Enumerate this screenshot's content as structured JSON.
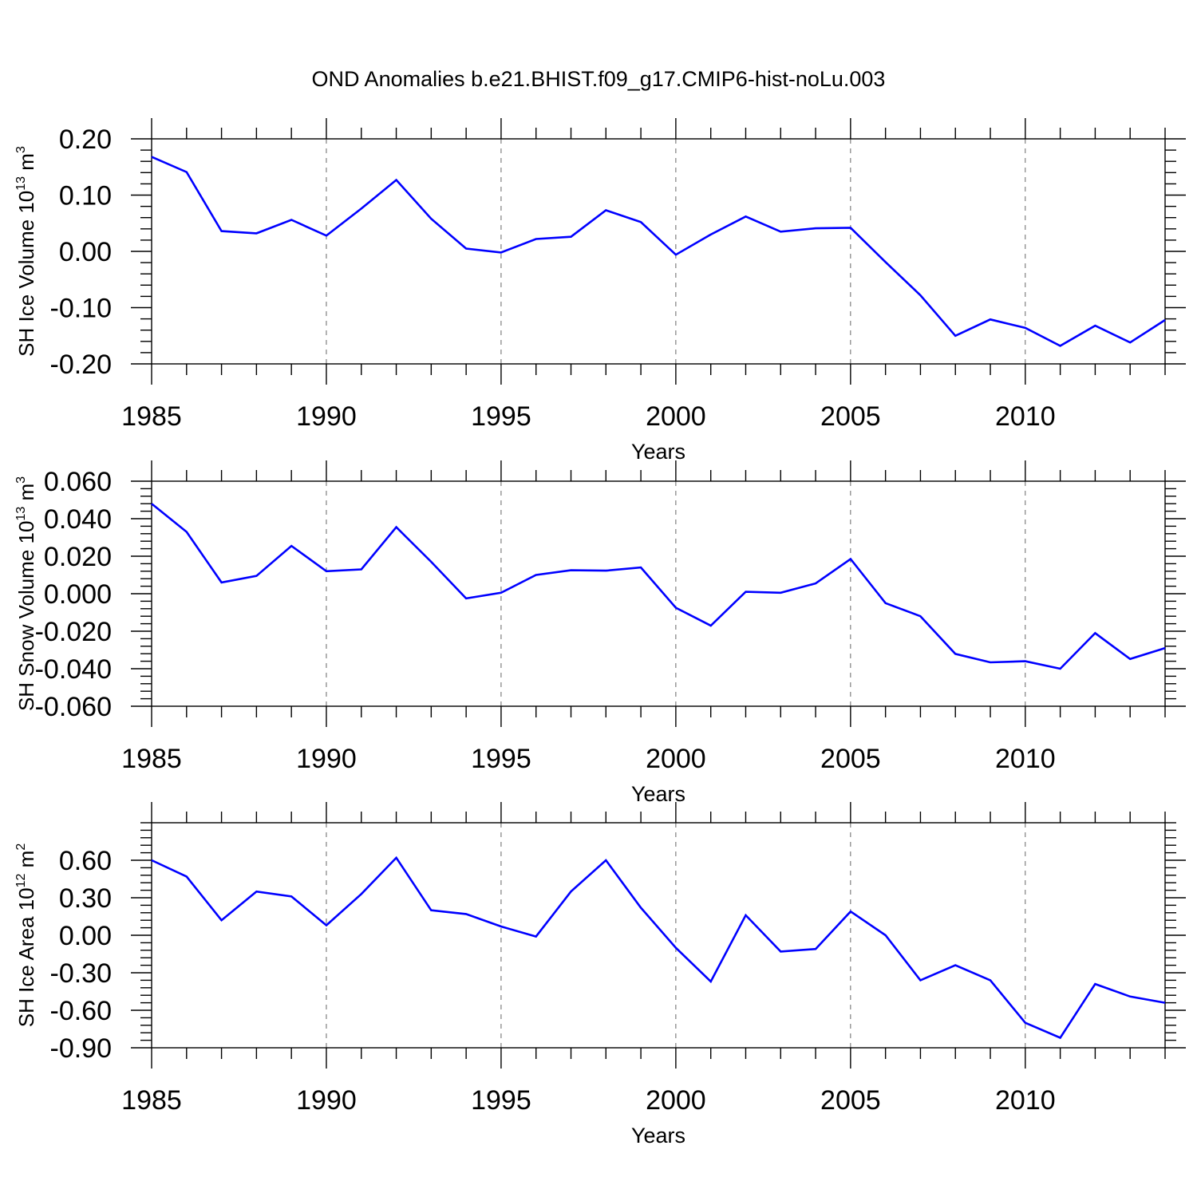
{
  "title": "OND Anomalies b.e21.BHIST.f09_g17.CMIP6-hist-noLu.003",
  "chart_data": [
    {
      "type": "line",
      "title": "",
      "xlabel": "Years",
      "ylabel": "SH Ice Volume 10",
      "ylabel_sup": "13",
      "ylabel_unit": " m",
      "ylabel_unit_sup": "3",
      "xlim": [
        1985,
        2014
      ],
      "ylim": [
        -0.2,
        0.2
      ],
      "x_ticks": [
        1985,
        1990,
        1995,
        2000,
        2005,
        2010
      ],
      "y_ticks": [
        0.2,
        0.1,
        0.0,
        -0.1,
        -0.2
      ],
      "y_tick_labels": [
        "0.20",
        "0.10",
        "0.00",
        "-0.10",
        "-0.20"
      ],
      "grid": "vertical dashed at major x ticks",
      "line_color": "#0000ff",
      "series": [
        {
          "x": [
            1985,
            1986,
            1987,
            1988,
            1989,
            1990,
            1991,
            1992,
            1993,
            1994,
            1995,
            1996,
            1997,
            1998,
            1999,
            2000,
            2001,
            2002,
            2003,
            2004,
            2005,
            2006,
            2007,
            2008,
            2009,
            2010,
            2011,
            2012,
            2013,
            2014
          ],
          "values": [
            0.168,
            0.141,
            0.036,
            0.032,
            0.056,
            0.028,
            0.076,
            0.127,
            0.058,
            0.005,
            -0.002,
            0.022,
            0.026,
            0.073,
            0.052,
            -0.006,
            0.03,
            0.062,
            0.035,
            0.041,
            0.042,
            -0.019,
            -0.078,
            -0.15,
            -0.121,
            -0.136,
            -0.168,
            -0.132,
            -0.162,
            -0.122
          ]
        }
      ]
    },
    {
      "type": "line",
      "title": "",
      "xlabel": "Years",
      "ylabel": "SH Snow Volume 10",
      "ylabel_sup": "13",
      "ylabel_unit": " m",
      "ylabel_unit_sup": "3",
      "xlim": [
        1985,
        2014
      ],
      "ylim": [
        -0.06,
        0.06
      ],
      "x_ticks": [
        1985,
        1990,
        1995,
        2000,
        2005,
        2010
      ],
      "y_ticks": [
        0.06,
        0.04,
        0.02,
        0.0,
        -0.02,
        -0.04,
        -0.06
      ],
      "y_tick_labels": [
        "0.060",
        "0.040",
        "0.020",
        "0.000",
        "-0.020",
        "-0.040",
        "-0.060"
      ],
      "grid": "vertical dashed at major x ticks",
      "line_color": "#0000ff",
      "series": [
        {
          "x": [
            1985,
            1986,
            1987,
            1988,
            1989,
            1990,
            1991,
            1992,
            1993,
            1994,
            1995,
            1996,
            1997,
            1998,
            1999,
            2000,
            2001,
            2002,
            2003,
            2004,
            2005,
            2006,
            2007,
            2008,
            2009,
            2010,
            2011,
            2012,
            2013,
            2014
          ],
          "values": [
            0.048,
            0.033,
            0.006,
            0.0095,
            0.0255,
            0.012,
            0.013,
            0.0355,
            0.017,
            -0.0025,
            0.0005,
            0.01,
            0.0125,
            0.0123,
            0.014,
            -0.0075,
            -0.017,
            0.001,
            0.0005,
            0.0055,
            0.0185,
            -0.005,
            -0.012,
            -0.0321,
            -0.0366,
            -0.036,
            -0.04,
            -0.021,
            -0.0348,
            -0.029
          ]
        }
      ]
    },
    {
      "type": "line",
      "title": "",
      "xlabel": "Years",
      "ylabel": "SH Ice Area 10",
      "ylabel_sup": "12",
      "ylabel_unit": " m",
      "ylabel_unit_sup": "2",
      "xlim": [
        1985,
        2014
      ],
      "ylim": [
        -0.9,
        0.9
      ],
      "x_ticks": [
        1985,
        1990,
        1995,
        2000,
        2005,
        2010
      ],
      "y_ticks": [
        0.6,
        0.3,
        0.0,
        -0.3,
        -0.6,
        -0.9
      ],
      "y_tick_labels": [
        "0.60",
        "0.30",
        "0.00",
        "-0.30",
        "-0.60",
        "-0.90"
      ],
      "grid": "vertical dashed at major x ticks",
      "line_color": "#0000ff",
      "series": [
        {
          "x": [
            1985,
            1986,
            1987,
            1988,
            1989,
            1990,
            1991,
            1992,
            1993,
            1994,
            1995,
            1996,
            1997,
            1998,
            1999,
            2000,
            2001,
            2002,
            2003,
            2004,
            2005,
            2006,
            2007,
            2008,
            2009,
            2010,
            2011,
            2012,
            2013,
            2014
          ],
          "values": [
            0.6,
            0.47,
            0.12,
            0.35,
            0.31,
            0.08,
            0.33,
            0.62,
            0.2,
            0.17,
            0.07,
            -0.01,
            0.35,
            0.6,
            0.22,
            -0.1,
            -0.37,
            0.16,
            -0.13,
            -0.11,
            0.19,
            0.0,
            -0.36,
            -0.24,
            -0.36,
            -0.7,
            -0.82,
            -0.39,
            -0.49,
            -0.54
          ]
        }
      ]
    }
  ]
}
